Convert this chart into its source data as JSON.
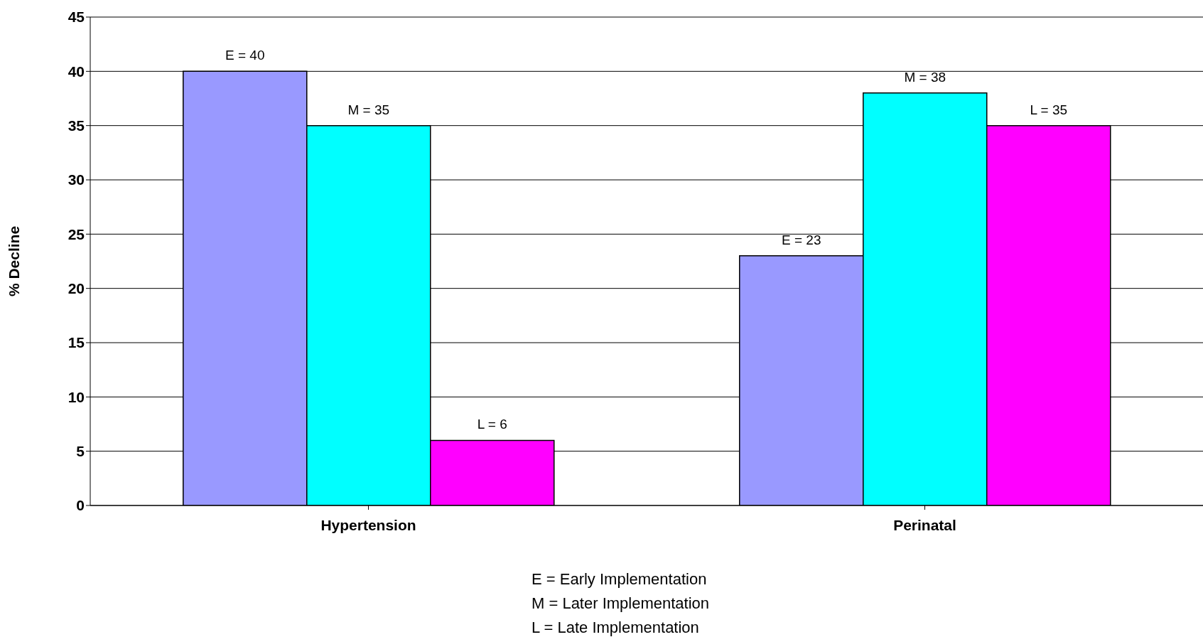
{
  "chart_data": {
    "type": "bar",
    "ylabel": "% Decline",
    "categories": [
      "Hypertension",
      "Perinatal"
    ],
    "series": [
      {
        "color": "#9999ff",
        "values": [
          40,
          23
        ],
        "value_labels": [
          "E = 40",
          "E = 23"
        ]
      },
      {
        "color": "#00ffff",
        "values": [
          35,
          38
        ],
        "value_labels": [
          "M = 35",
          "M = 38"
        ]
      },
      {
        "color": "#ff00ff",
        "values": [
          6,
          35
        ],
        "value_labels": [
          "L = 6",
          "L = 35"
        ]
      }
    ],
    "ylim": [
      0,
      45
    ],
    "yticks": [
      0,
      5,
      10,
      15,
      20,
      25,
      30,
      35,
      40,
      45
    ],
    "grid": "y",
    "annotations": [
      "E  = Early Implementation",
      "M = Later Implementation",
      "L  = Late Implementation"
    ]
  }
}
